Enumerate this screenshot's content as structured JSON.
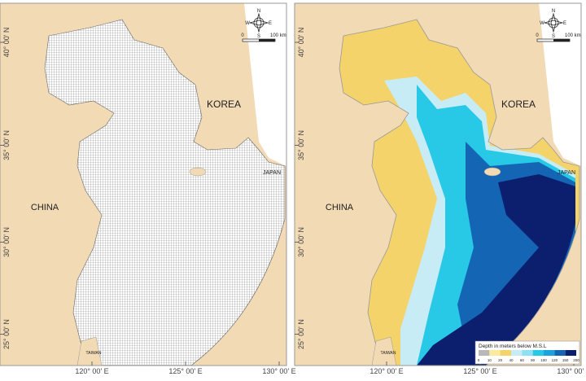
{
  "axes": {
    "lat_ticks": [
      {
        "value": 40,
        "label": "40° 00' N"
      },
      {
        "value": 35,
        "label": "35° 00' N"
      },
      {
        "value": 30,
        "label": "30° 00' N"
      },
      {
        "value": 25,
        "label": "25° 00' N"
      }
    ],
    "lon_ticks": [
      {
        "value": 120,
        "label": "120° 00' E"
      },
      {
        "value": 125,
        "label": "125° 00' E"
      },
      {
        "value": 130,
        "label": "130° 00' E"
      }
    ]
  },
  "places": {
    "korea": "KOREA",
    "china": "CHINA",
    "japan": "JAPAN",
    "taiwan": "TAIWAN"
  },
  "compass": {
    "n": "N",
    "s": "S",
    "e": "E",
    "w": "W"
  },
  "scale_bar": {
    "start": 0,
    "end": "100 km"
  },
  "legend": {
    "title": "Depth in meters below M.S.L",
    "bounds": [
      0,
      10,
      20,
      40,
      60,
      80,
      100,
      120,
      150,
      200
    ],
    "colors": [
      "#b8b8b8",
      "#fbeaa0",
      "#f3d36a",
      "#c8ecf6",
      "#8fe0f2",
      "#27c9e6",
      "#1ca3dc",
      "#1466b4",
      "#0b1f6e"
    ]
  }
}
